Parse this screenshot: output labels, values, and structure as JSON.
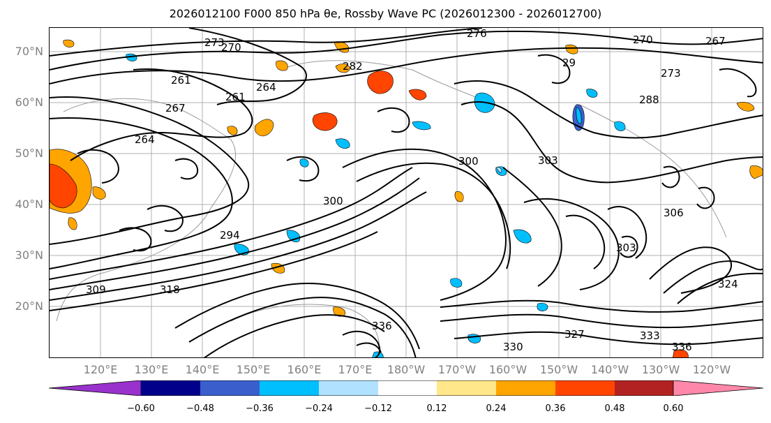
{
  "title": "2026012100 F000 850 hPa θe, Rossby Wave PC (2026012300 - 2026012700)",
  "lat_labels": [
    "70°N",
    "60°N",
    "50°N",
    "40°N",
    "30°N",
    "20°N"
  ],
  "lon_labels": [
    "120°E",
    "130°E",
    "140°E",
    "150°E",
    "160°E",
    "170°E",
    "180°W",
    "170°W",
    "160°W",
    "150°W",
    "140°W",
    "130°W",
    "120°W"
  ],
  "contour_labels": [
    "273",
    "270",
    "276",
    "270",
    "267",
    "264",
    "261",
    "261",
    "264",
    "267",
    "282",
    "29",
    "273",
    "288",
    "300",
    "303",
    "300",
    "294",
    "309",
    "318",
    "336",
    "330",
    "333",
    "336",
    "324",
    "327",
    "306",
    "303"
  ],
  "colorbar": {
    "ticks": [
      "−0.60",
      "−0.48",
      "−0.36",
      "−0.24",
      "−0.12",
      "0.12",
      "0.24",
      "0.36",
      "0.48",
      "0.60"
    ],
    "colors": [
      "#9932CC",
      "#00008B",
      "#3A5FCD",
      "#00BFFF",
      "#B0E2FF",
      "#FFFFFF",
      "#FFE78A",
      "#FFA500",
      "#FF4500",
      "#B22222",
      "#FF88AA"
    ]
  },
  "colors": {
    "contour": "#000000",
    "grid": "#B0B0B0",
    "axis_label": "#808080"
  }
}
